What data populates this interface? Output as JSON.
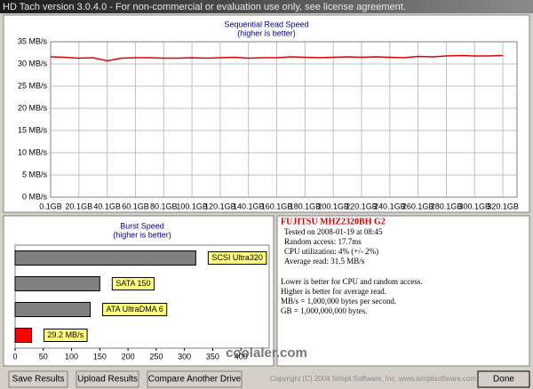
{
  "window_title": "HD Tach version 3.0.4.0  - For non-commercial or evaluation use only, see license agreement.",
  "chart_data": [
    {
      "type": "line",
      "title": "Sequential Read Speed",
      "subtitle": "(higher is better)",
      "color": "#e00000",
      "grid": true,
      "x": [
        0.1,
        10.1,
        20.1,
        30.1,
        40.1,
        50.1,
        60.1,
        70.1,
        80.1,
        90.1,
        100.1,
        110.1,
        120.1,
        130.1,
        140.1,
        150.1,
        160.1,
        170.1,
        180.1,
        190.1,
        200.1,
        210.1,
        220.1,
        230.1,
        240.1,
        250.1,
        260.1,
        270.1,
        280.1,
        290.1,
        300.1,
        310.1,
        320.1
      ],
      "values": [
        31.6,
        31.5,
        31.3,
        31.4,
        30.7,
        31.3,
        31.4,
        31.4,
        31.3,
        31.3,
        31.4,
        31.3,
        31.4,
        31.5,
        31.3,
        31.4,
        31.4,
        31.6,
        31.5,
        31.4,
        31.5,
        31.6,
        31.5,
        31.6,
        31.5,
        31.4,
        31.7,
        31.6,
        31.8,
        31.9,
        31.8,
        31.8,
        31.9
      ],
      "xlim": [
        0.1,
        330.1
      ],
      "xticks": [
        {
          "value": 0.1,
          "label": "0.1GB"
        },
        {
          "value": 20.1,
          "label": "20.1GB"
        },
        {
          "value": 40.1,
          "label": "40.1GB"
        },
        {
          "value": 60.1,
          "label": "60.1GB"
        },
        {
          "value": 80.1,
          "label": "80.1GB"
        },
        {
          "value": 100.1,
          "label": "100.1GB"
        },
        {
          "value": 120.1,
          "label": "120.1GB"
        },
        {
          "value": 140.1,
          "label": "140.1GB"
        },
        {
          "value": 160.1,
          "label": "160.1GB"
        },
        {
          "value": 180.1,
          "label": "180.1GB"
        },
        {
          "value": 200.1,
          "label": "200.1GB"
        },
        {
          "value": 220.1,
          "label": "220.1GB"
        },
        {
          "value": 240.1,
          "label": "240.1GB"
        },
        {
          "value": 260.1,
          "label": "260.1GB"
        },
        {
          "value": 280.1,
          "label": "280.1GB"
        },
        {
          "value": 300.1,
          "label": "300.1GB"
        },
        {
          "value": 320.1,
          "label": "320.1GB"
        }
      ],
      "ylim": [
        0,
        35
      ],
      "yticks": [
        {
          "value": 0,
          "label": "0 MB/s"
        },
        {
          "value": 5,
          "label": "5 MB/s"
        },
        {
          "value": 10,
          "label": "10 MB/s"
        },
        {
          "value": 15,
          "label": "15 MB/s"
        },
        {
          "value": 20,
          "label": "20 MB/s"
        },
        {
          "value": 25,
          "label": "25 MB/s"
        },
        {
          "value": 30,
          "label": "30 MB/s"
        },
        {
          "value": 35,
          "label": "35 MB/s"
        }
      ]
    },
    {
      "type": "hbar",
      "title": "Burst Speed",
      "subtitle": "(higher is better)",
      "grid": false,
      "categories": [
        "SCSI Ultra320",
        "SATA 150",
        "ATA UltraDMA 6",
        null
      ],
      "values": [
        320,
        150,
        133,
        29.2
      ],
      "value_labels": [
        null,
        null,
        null,
        "29.2 MB/s"
      ],
      "colors": [
        "#808080",
        "#808080",
        "#808080",
        "#ff0000"
      ],
      "xlim": [
        0,
        450
      ],
      "xticks": [
        0,
        50,
        100,
        150,
        200,
        250,
        300,
        350,
        400
      ]
    }
  ],
  "drive_info": {
    "name": "FUJITSU MHZ2320BH G2",
    "lines": [
      "Tested on 2008-01-19 at 08:45",
      "Random access: 17.7ms",
      "CPU utilization: 4% (+/- 2%)",
      "Average read: 31.5 MB/s"
    ],
    "notes": [
      "Lower is better for CPU and random access.",
      "Higher is better for average read.",
      "MB/s = 1,000,000 bytes per second.",
      "GB = 1,000,000,000 bytes."
    ]
  },
  "watermark": "coolaler.com",
  "copyright": "Copyright (C) 2004 Simpli Software, Inc. www.simplisoftware.com",
  "buttons": [
    "Save Results",
    "Upload Results",
    "Compare Another Drive",
    "Done"
  ]
}
